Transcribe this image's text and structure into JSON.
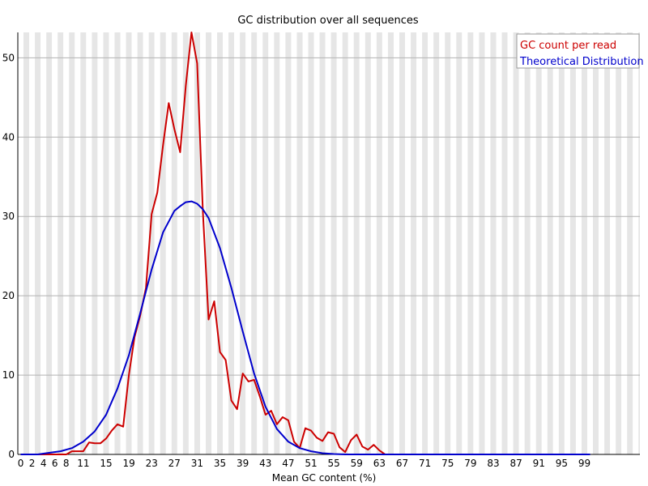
{
  "chart_data": {
    "type": "line",
    "title": "GC distribution over all sequences",
    "xlabel": "Mean GC content (%)",
    "ylabel": "",
    "xlim": [
      0,
      100
    ],
    "ylim": [
      0,
      53.2
    ],
    "grid": "horizontal lines with alternating grey/white column bands",
    "legend_position": "top-right",
    "x_tick_labels": [
      "0",
      "2",
      "4",
      "6",
      "8",
      "11",
      "15",
      "19",
      "23",
      "27",
      "31",
      "35",
      "39",
      "43",
      "47",
      "51",
      "55",
      "59",
      "63",
      "67",
      "71",
      "75",
      "79",
      "83",
      "87",
      "91",
      "95",
      "99"
    ],
    "x_tick_values": [
      0,
      2,
      4,
      6,
      8,
      11,
      15,
      19,
      23,
      27,
      31,
      35,
      39,
      43,
      47,
      51,
      55,
      59,
      63,
      67,
      71,
      75,
      79,
      83,
      87,
      91,
      95,
      99
    ],
    "y_ticks": [
      0,
      10,
      20,
      30,
      40,
      50
    ],
    "series": [
      {
        "name": "GC count per read",
        "color": "#cc0000",
        "points": [
          [
            0,
            0
          ],
          [
            2,
            0
          ],
          [
            4,
            0
          ],
          [
            6,
            0
          ],
          [
            8,
            0
          ],
          [
            9,
            0.4
          ],
          [
            10,
            0.4
          ],
          [
            11,
            0.4
          ],
          [
            12,
            1.5
          ],
          [
            13,
            1.4
          ],
          [
            14,
            1.4
          ],
          [
            15,
            2.0
          ],
          [
            16,
            3.0
          ],
          [
            17,
            3.8
          ],
          [
            18,
            3.5
          ],
          [
            19,
            10.0
          ],
          [
            20,
            14.8
          ],
          [
            21,
            17.5
          ],
          [
            22,
            21.0
          ],
          [
            23,
            30.3
          ],
          [
            24,
            33.0
          ],
          [
            25,
            39.0
          ],
          [
            26,
            44.3
          ],
          [
            27,
            41.0
          ],
          [
            28,
            38.1
          ],
          [
            29,
            46.5
          ],
          [
            30,
            53.2
          ],
          [
            31,
            49.3
          ],
          [
            32,
            30.5
          ],
          [
            33,
            17.0
          ],
          [
            34,
            19.3
          ],
          [
            35,
            12.9
          ],
          [
            36,
            11.9
          ],
          [
            37,
            6.8
          ],
          [
            38,
            5.7
          ],
          [
            39,
            10.2
          ],
          [
            40,
            9.2
          ],
          [
            41,
            9.4
          ],
          [
            42,
            7.3
          ],
          [
            43,
            5.0
          ],
          [
            44,
            5.5
          ],
          [
            45,
            3.8
          ],
          [
            46,
            4.7
          ],
          [
            47,
            4.3
          ],
          [
            48,
            1.6
          ],
          [
            49,
            0.8
          ],
          [
            50,
            3.3
          ],
          [
            51,
            3.0
          ],
          [
            52,
            2.1
          ],
          [
            53,
            1.7
          ],
          [
            54,
            2.8
          ],
          [
            55,
            2.6
          ],
          [
            56,
            0.9
          ],
          [
            57,
            0.3
          ],
          [
            58,
            1.8
          ],
          [
            59,
            2.5
          ],
          [
            60,
            1.0
          ],
          [
            61,
            0.6
          ],
          [
            62,
            1.2
          ],
          [
            63,
            0.5
          ],
          [
            64,
            0
          ],
          [
            65,
            0
          ],
          [
            70,
            0
          ],
          [
            80,
            0
          ],
          [
            90,
            0
          ],
          [
            100,
            0
          ]
        ]
      },
      {
        "name": "Theoretical Distribution",
        "color": "#0000cc",
        "points": [
          [
            0,
            0
          ],
          [
            3,
            0
          ],
          [
            5,
            0.2
          ],
          [
            7,
            0.4
          ],
          [
            9,
            0.8
          ],
          [
            11,
            1.6
          ],
          [
            13,
            2.9
          ],
          [
            15,
            5.0
          ],
          [
            17,
            8.3
          ],
          [
            19,
            12.5
          ],
          [
            21,
            17.8
          ],
          [
            23,
            23.3
          ],
          [
            25,
            28.0
          ],
          [
            27,
            30.7
          ],
          [
            28,
            31.3
          ],
          [
            29,
            31.8
          ],
          [
            30,
            31.9
          ],
          [
            31,
            31.6
          ],
          [
            32,
            30.9
          ],
          [
            33,
            29.8
          ],
          [
            35,
            26.0
          ],
          [
            37,
            21.0
          ],
          [
            39,
            15.5
          ],
          [
            41,
            10.2
          ],
          [
            43,
            6.0
          ],
          [
            45,
            3.2
          ],
          [
            47,
            1.6
          ],
          [
            49,
            0.8
          ],
          [
            51,
            0.4
          ],
          [
            53,
            0.15
          ],
          [
            55,
            0.05
          ],
          [
            57,
            0
          ],
          [
            60,
            0
          ],
          [
            70,
            0
          ],
          [
            80,
            0
          ],
          [
            90,
            0
          ],
          [
            100,
            0
          ]
        ]
      }
    ]
  }
}
